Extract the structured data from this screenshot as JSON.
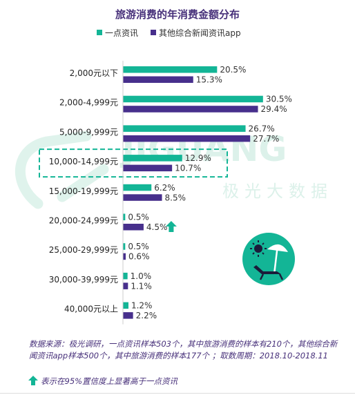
{
  "chart_data": {
    "type": "bar",
    "orientation": "horizontal",
    "title": "旅游消费的年消费金额分布",
    "categories": [
      "2,000元以下",
      "2,000-4,999元",
      "5,000-9,999元",
      "10,000-14,999元",
      "15,000-19,999元",
      "20,000-24,999元",
      "25,000-29,999元",
      "30,000-39,999元",
      "40,000元以上"
    ],
    "series": [
      {
        "name": "一点资讯",
        "values": [
          20.5,
          30.5,
          26.7,
          12.9,
          6.2,
          0.5,
          0.5,
          1.0,
          1.2
        ],
        "labels": [
          "20.5%",
          "30.5%",
          "26.7%",
          "12.9%",
          "6.2%",
          "0.5%",
          "0.5%",
          "1.0%",
          "1.2%"
        ],
        "color": "#13b596"
      },
      {
        "name": "其他综合新闻资讯app",
        "values": [
          15.3,
          29.4,
          27.7,
          10.7,
          8.5,
          4.5,
          0.6,
          1.1,
          2.2
        ],
        "labels": [
          "15.3%",
          "29.4%",
          "27.7%",
          "10.7%",
          "8.5%",
          "4.5%",
          "0.6%",
          "1.1%",
          "2.2%"
        ],
        "color": "#472f8c"
      }
    ],
    "unit": "%",
    "highlighted_category": "10,000-14,999元",
    "significant": [
      {
        "category": "20,000-24,999元",
        "series": "其他综合新闻资讯app"
      }
    ],
    "legend_position": "top-center",
    "grid": false
  },
  "watermark": {
    "brand": "JIGUANG",
    "sub": "极光大数据"
  },
  "footnote": {
    "source": "数据来源：极光调研，一点资讯样本503个，其中旅游消费的样本有210个，其他综合新闻资讯app样本500个，其中旅游消费的样本177个 ；取数周期：2018.10-2018.11",
    "significance": "表示在95%置信度上显著高于一点资讯"
  },
  "colors": {
    "teal": "#13b596",
    "purple": "#472f8c",
    "title": "#47307a"
  },
  "icons": {
    "significance": "up-arrow-icon",
    "badge": "beach-umbrella-icon"
  }
}
